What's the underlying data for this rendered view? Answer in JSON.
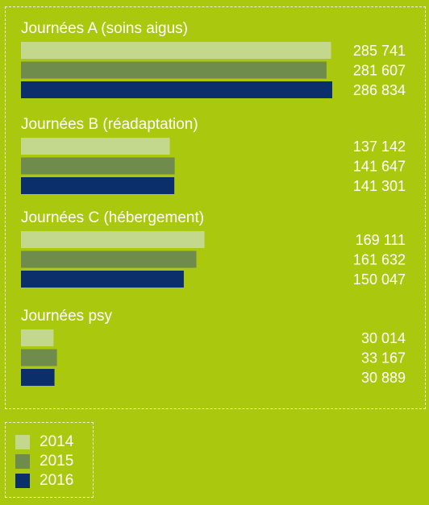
{
  "chart_data": {
    "type": "bar",
    "orientation": "horizontal",
    "categories": [
      "Journées A (soins aigus)",
      "Journées B (réadaptation)",
      "Journées C (hébergement)",
      "Journées psy"
    ],
    "series": [
      {
        "name": "2014",
        "color": "#c3d88c",
        "values": [
          285741,
          137142,
          169111,
          30014
        ],
        "labels": [
          "285 741",
          "137 142",
          "169 111",
          "30 014"
        ]
      },
      {
        "name": "2015",
        "color": "#708c4c",
        "values": [
          281607,
          141647,
          161632,
          33167
        ],
        "labels": [
          "281 607",
          "141 647",
          "161 632",
          "33 167"
        ]
      },
      {
        "name": "2016",
        "color": "#0b2f6b",
        "values": [
          286834,
          141301,
          150047,
          30889
        ],
        "labels": [
          "286 834",
          "141 301",
          "150 047",
          "30 889"
        ]
      }
    ],
    "xlim": [
      0,
      286834
    ],
    "grid": false,
    "legend_placement": "bottom-left"
  }
}
